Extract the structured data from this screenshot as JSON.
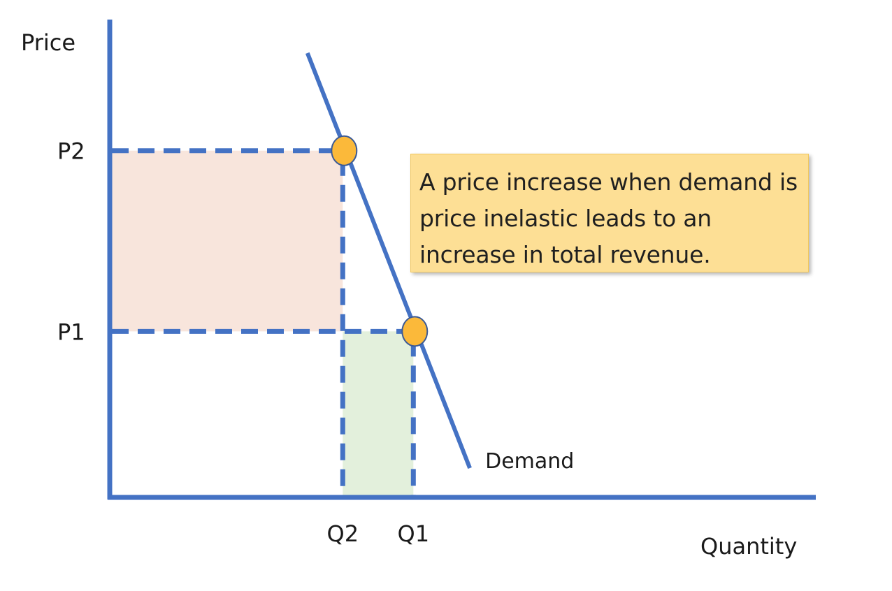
{
  "chart_data": {
    "type": "line",
    "title": "",
    "xlabel": "Quantity",
    "ylabel": "Price",
    "xlim": [
      0,
      100
    ],
    "ylim": [
      0,
      100
    ],
    "x_ticks": [
      {
        "label": "Q2",
        "value": 33
      },
      {
        "label": "Q1",
        "value": 43
      }
    ],
    "y_ticks": [
      {
        "label": "P2",
        "value": 71
      },
      {
        "label": "P1",
        "value": 34
      }
    ],
    "series": [
      {
        "name": "Demand",
        "points": [
          [
            28,
            91
          ],
          [
            51,
            6
          ]
        ]
      }
    ],
    "points": [
      {
        "x": 33,
        "y": 71
      },
      {
        "x": 43,
        "y": 34
      }
    ],
    "regions": [
      {
        "x0": 0,
        "x1": 33,
        "y0": 34,
        "y1": 71,
        "color": "#f8e5dc"
      },
      {
        "x0": 33,
        "x1": 43,
        "y0": 0,
        "y1": 34,
        "color": "#e3f0dc"
      }
    ],
    "annotation": "A price increase when demand is price inelastic leads to an increase in total revenue.",
    "colors": {
      "axis": "#4472c4",
      "demand": "#4472c4",
      "dashed": "#4472c4",
      "point_fill": "#fbb93a",
      "point_stroke": "#3b5a96",
      "callout_bg": "#fddf95"
    },
    "grid": false,
    "legend": "none"
  }
}
